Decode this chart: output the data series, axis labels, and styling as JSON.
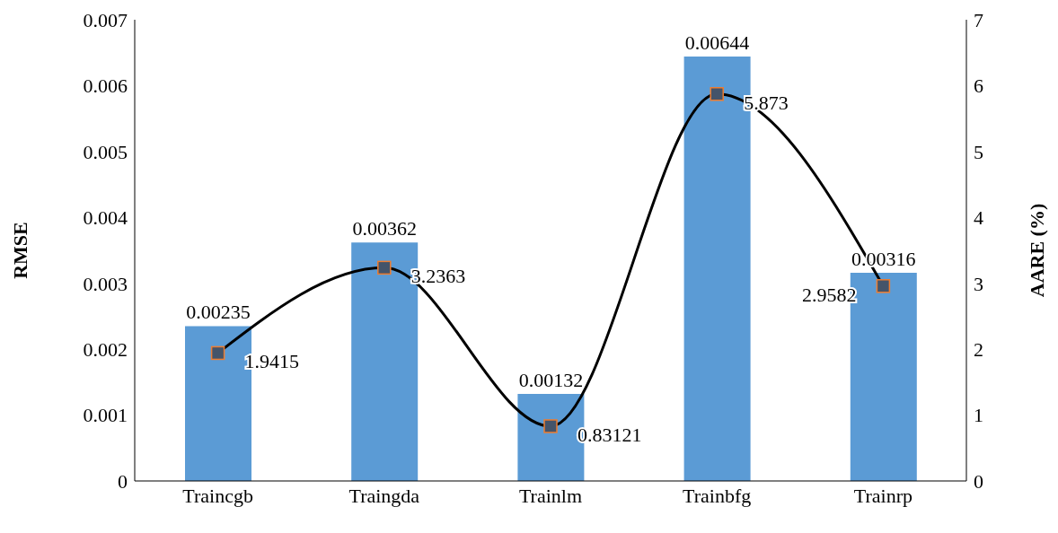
{
  "chart_data": {
    "type": "bar",
    "categories": [
      "Traincgb",
      "Traingda",
      "Trainlm",
      "Trainbfg",
      "Trainrp"
    ],
    "ylabel": "RMSE",
    "y2label": "AARE (%)",
    "series": [
      {
        "color": "#5b9bd5",
        "values": [
          0.00235,
          0.00362,
          0.00132,
          0.00644,
          0.00316
        ]
      },
      {
        "type": "line",
        "axis": "y2",
        "color": "#000000",
        "values": [
          1.9415,
          3.2363,
          0.83121,
          5.873,
          2.9582
        ]
      }
    ],
    "ylim": [
      0,
      0.007
    ],
    "yticks": [
      0,
      0.001,
      0.002,
      0.003,
      0.004,
      0.005,
      0.006,
      0.007
    ],
    "y2lim": [
      0,
      7
    ],
    "y2ticks": [
      0,
      1,
      2,
      3,
      4,
      5,
      6,
      7
    ],
    "data_labels": true,
    "marker": "square",
    "line_style": "solid",
    "grid": false,
    "legend": false
  }
}
